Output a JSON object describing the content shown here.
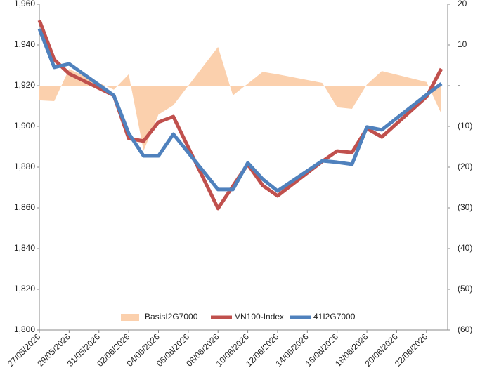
{
  "chart_data": {
    "type": "line",
    "x": [
      "27/05/2026",
      "28/05/2026",
      "29/05/2026",
      "01/06/2026",
      "02/06/2026",
      "03/06/2026",
      "04/06/2026",
      "05/06/2026",
      "08/06/2026",
      "09/06/2026",
      "10/06/2026",
      "11/06/2026",
      "12/06/2026",
      "15/06/2026",
      "16/06/2026",
      "17/06/2026",
      "18/06/2026",
      "19/06/2026",
      "22/06/2026",
      "23/06/2026"
    ],
    "xlim": [
      "27/05/2026",
      "23/06/2026"
    ],
    "xticks": [
      "27/05/2026",
      "29/05/2026",
      "31/05/2026",
      "02/06/2026",
      "04/06/2026",
      "06/06/2026",
      "08/06/2026",
      "10/06/2026",
      "12/06/2026",
      "14/06/2026",
      "16/06/2026",
      "18/06/2026",
      "20/06/2026",
      "22/06/2026"
    ],
    "ylim": [
      1800,
      1960
    ],
    "yticks": [
      {
        "value": 1800,
        "label": "1,800"
      },
      {
        "value": 1820,
        "label": "1,820"
      },
      {
        "value": 1840,
        "label": "1,840"
      },
      {
        "value": 1860,
        "label": "1,860"
      },
      {
        "value": 1880,
        "label": "1,880"
      },
      {
        "value": 1900,
        "label": "1,900"
      },
      {
        "value": 1920,
        "label": "1,920"
      },
      {
        "value": 1940,
        "label": "1,940"
      },
      {
        "value": 1960,
        "label": "1,960"
      }
    ],
    "y2lim": [
      -60,
      20
    ],
    "y2ticks": [
      {
        "value": -60,
        "label": "(60)"
      },
      {
        "value": -50,
        "label": "(50)"
      },
      {
        "value": -40,
        "label": "(40)"
      },
      {
        "value": -30,
        "label": "(30)"
      },
      {
        "value": -20,
        "label": "(20)"
      },
      {
        "value": -10,
        "label": "(10)"
      },
      {
        "value": 0,
        "label": "-"
      },
      10,
      20
    ],
    "legend": "lower center",
    "series": [
      {
        "name": "BasisI2G7000",
        "kind": "area",
        "axis": "y2",
        "color": "#fbd0ad",
        "values": [
          -3.6,
          -3.8,
          4.1,
          -1.0,
          2.8,
          -16.0,
          -7.1,
          -4.8,
          9.5,
          -2.4,
          0.5,
          3.4,
          2.8,
          0.7,
          -5.3,
          -5.7,
          0.3,
          3.6,
          0.9,
          -6.9
        ]
      },
      {
        "name": "VN100-Index",
        "kind": "line",
        "color": "#c0504d",
        "values": [
          1952.1,
          1932.8,
          1925.9,
          1915.2,
          1894.1,
          1892.8,
          1902.1,
          1904.8,
          1859.7,
          1870.7,
          1881.4,
          1871.0,
          1865.9,
          1882.8,
          1887.9,
          1887.2,
          1899.0,
          1894.8,
          1914.5,
          1928.3
        ]
      },
      {
        "name": "41I2G7000",
        "kind": "line",
        "color": "#4f81bd",
        "values": [
          1947.9,
          1929.0,
          1930.7,
          1915.2,
          1896.6,
          1885.5,
          1885.5,
          1896.2,
          1869.0,
          1869.0,
          1882.1,
          1874.1,
          1868.3,
          1883.1,
          1882.4,
          1881.4,
          1899.7,
          1898.3,
          1915.5,
          1921.0
        ]
      }
    ]
  }
}
